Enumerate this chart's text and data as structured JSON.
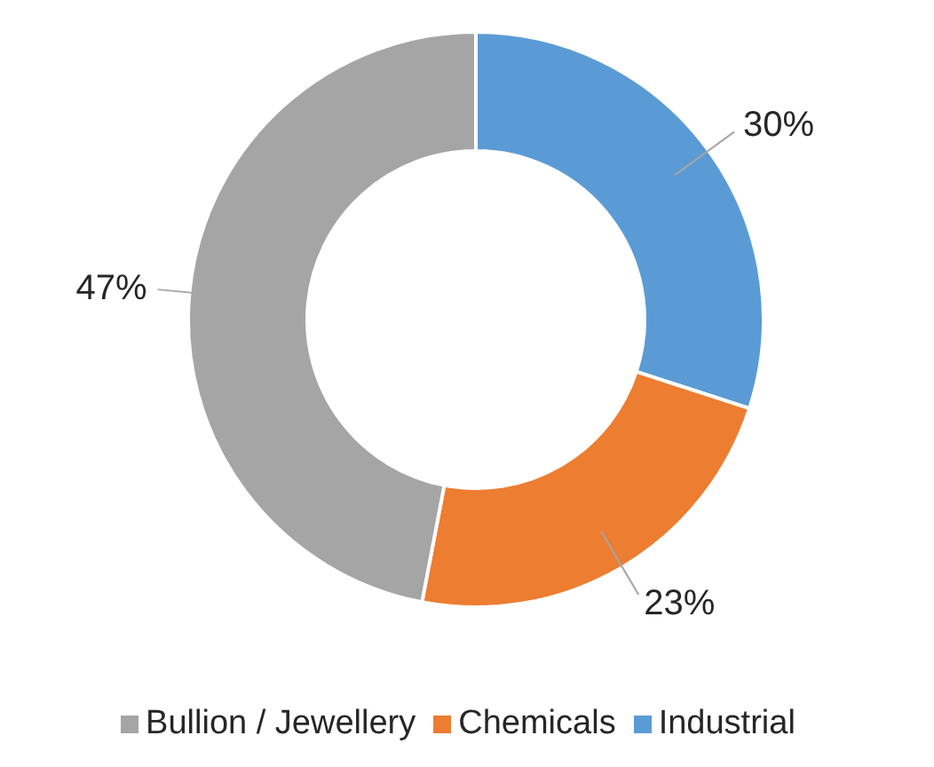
{
  "chart_data": {
    "type": "donut",
    "categories": [
      "Industrial",
      "Chemicals",
      "Bullion / Jewellery"
    ],
    "values": [
      30,
      23,
      47
    ],
    "colors": [
      "#5b9bd5",
      "#ed7d31",
      "#a5a5a5"
    ],
    "value_labels": [
      "30%",
      "23%",
      "47%"
    ],
    "legend": "bottom"
  }
}
